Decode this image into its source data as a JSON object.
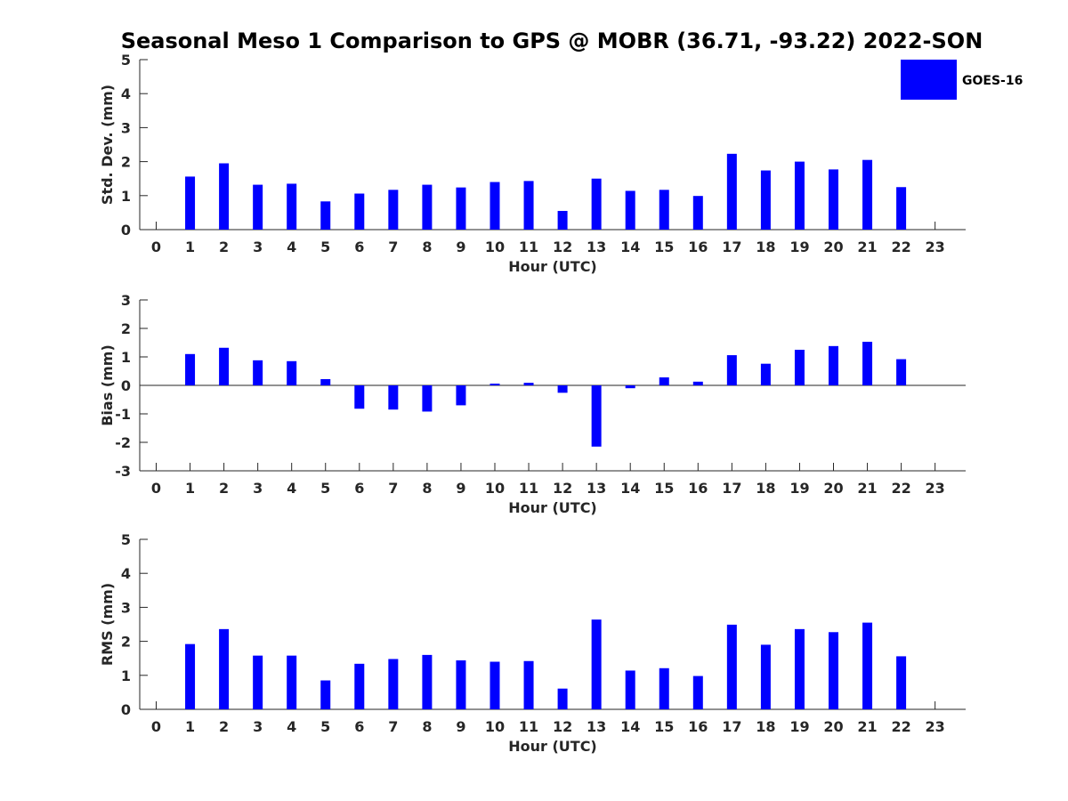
{
  "chart_data": {
    "type": "bar",
    "title": "Seasonal Meso 1 Comparison to GPS @ MOBR (36.71, -93.22) 2022-SON",
    "categories": [
      "0",
      "1",
      "2",
      "3",
      "4",
      "5",
      "6",
      "7",
      "8",
      "9",
      "10",
      "11",
      "12",
      "13",
      "14",
      "15",
      "16",
      "17",
      "18",
      "19",
      "20",
      "21",
      "22",
      "23"
    ],
    "legend": {
      "entries": [
        "GOES-16"
      ],
      "placement": "top-right"
    },
    "bar_color": "#0000ff",
    "panels": [
      {
        "ylabel": "Std. Dev. (mm)",
        "xlabel": "Hour (UTC)",
        "ylim": [
          0,
          5
        ],
        "yticks": [
          "0",
          "1",
          "2",
          "3",
          "4",
          "5"
        ],
        "series": [
          {
            "name": "GOES-16",
            "values": [
              null,
              1.56,
              1.95,
              1.32,
              1.35,
              0.83,
              1.06,
              1.17,
              1.32,
              1.24,
              1.4,
              1.43,
              0.55,
              1.5,
              1.14,
              1.17,
              0.99,
              2.23,
              1.74,
              2.0,
              1.77,
              2.05,
              1.25,
              null
            ]
          }
        ]
      },
      {
        "ylabel": "Bias (mm)",
        "xlabel": "Hour (UTC)",
        "ylim": [
          -3,
          3
        ],
        "yticks": [
          "-3",
          "-2",
          "-1",
          "0",
          "1",
          "2",
          "3"
        ],
        "series": [
          {
            "name": "GOES-16",
            "values": [
              null,
              1.1,
              1.32,
              0.88,
              0.85,
              0.22,
              -0.82,
              -0.85,
              -0.92,
              -0.7,
              0.06,
              0.09,
              -0.26,
              -2.15,
              -0.1,
              0.28,
              0.13,
              1.06,
              0.76,
              1.25,
              1.38,
              1.53,
              0.92,
              null
            ]
          }
        ]
      },
      {
        "ylabel": "RMS (mm)",
        "xlabel": "Hour (UTC)",
        "ylim": [
          0,
          5
        ],
        "yticks": [
          "0",
          "1",
          "2",
          "3",
          "4",
          "5"
        ],
        "series": [
          {
            "name": "GOES-16",
            "values": [
              null,
              1.92,
              2.36,
              1.58,
              1.58,
              0.85,
              1.34,
              1.48,
              1.6,
              1.44,
              1.4,
              1.42,
              0.61,
              2.64,
              1.14,
              1.21,
              0.98,
              2.49,
              1.9,
              2.36,
              2.27,
              2.55,
              1.56,
              null
            ]
          }
        ]
      }
    ]
  }
}
